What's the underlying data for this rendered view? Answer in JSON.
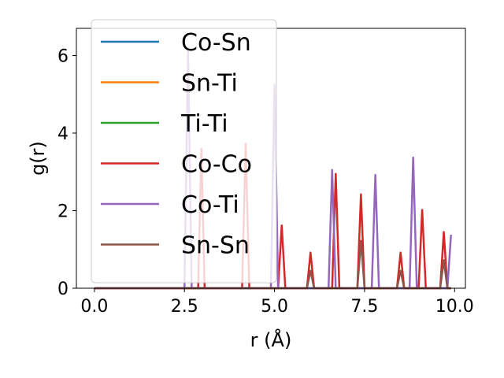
{
  "chart_data": {
    "type": "line",
    "xlabel": "r (Å)",
    "ylabel": "g(r)",
    "xlim": [
      -0.5,
      10.3
    ],
    "ylim": [
      0,
      6.7
    ],
    "xticks": [
      {
        "value": 0.0,
        "label": "0.0"
      },
      {
        "value": 2.5,
        "label": "2.5"
      },
      {
        "value": 5.0,
        "label": "5.0"
      },
      {
        "value": 7.5,
        "label": "7.5"
      },
      {
        "value": 10.0,
        "label": "10.0"
      }
    ],
    "yticks": [
      {
        "value": 0,
        "label": "0"
      },
      {
        "value": 2,
        "label": "2"
      },
      {
        "value": 4,
        "label": "4"
      },
      {
        "value": 6,
        "label": "6"
      }
    ],
    "grid": false,
    "legend_position": "upper-left",
    "series": [
      {
        "name": "Co-Sn",
        "color": "#1f77b4",
        "x": [
          0,
          9.9
        ],
        "y": [
          0,
          0
        ]
      },
      {
        "name": "Sn-Ti",
        "color": "#ff7f0e",
        "x": [
          0,
          9.9
        ],
        "y": [
          0,
          0
        ]
      },
      {
        "name": "Ti-Ti",
        "color": "#2ca02c",
        "x": [
          0,
          9.9
        ],
        "y": [
          0,
          0
        ]
      },
      {
        "name": "Co-Co",
        "color": "#d62728",
        "x": [
          0,
          2.88,
          2.97,
          3.06,
          3.15,
          4.1,
          4.2,
          4.3,
          5.1,
          5.2,
          5.3,
          5.9,
          6.0,
          6.1,
          6.6,
          6.7,
          6.8,
          7.3,
          7.4,
          7.5,
          8.4,
          8.5,
          8.6,
          9.0,
          9.1,
          9.2,
          9.6,
          9.7,
          9.8,
          9.9
        ],
        "y": [
          0,
          0,
          3.6,
          0,
          0,
          0,
          3.72,
          0,
          0,
          1.62,
          0,
          0,
          0.92,
          0,
          0,
          2.95,
          0,
          0,
          2.42,
          0,
          0,
          0.92,
          0,
          0,
          2.02,
          0,
          0,
          1.45,
          0,
          0
        ]
      },
      {
        "name": "Co-Ti",
        "color": "#9467bd",
        "x": [
          0,
          2.5,
          2.6,
          2.7,
          4.9,
          5.0,
          5.1,
          6.5,
          6.6,
          6.7,
          7.7,
          7.8,
          7.9,
          8.75,
          8.85,
          8.95,
          9.8,
          9.9
        ],
        "y": [
          0,
          0,
          6.2,
          0,
          0,
          5.25,
          0,
          0,
          3.05,
          0,
          0,
          2.92,
          0,
          0,
          3.37,
          0,
          0,
          1.38
        ]
      },
      {
        "name": "Sn-Sn",
        "color": "#8c564b",
        "x": [
          0,
          5.9,
          6.0,
          6.1,
          7.3,
          7.4,
          7.5,
          8.4,
          8.5,
          8.6,
          9.6,
          9.7,
          9.8,
          9.9
        ],
        "y": [
          0,
          0,
          0.45,
          0,
          0,
          1.22,
          0,
          0,
          0.45,
          0,
          0,
          0.72,
          0,
          0
        ]
      }
    ]
  }
}
